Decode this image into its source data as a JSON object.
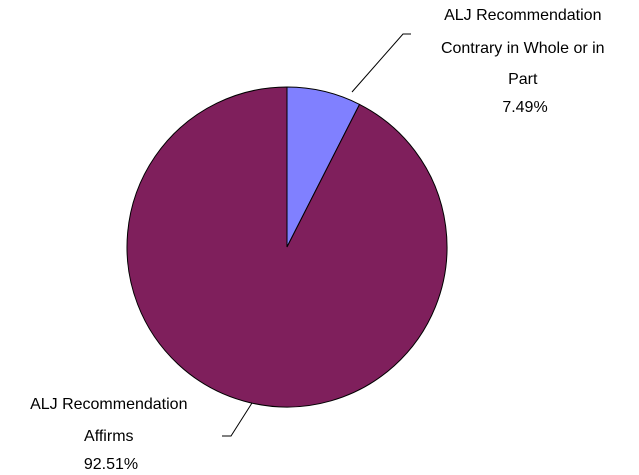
{
  "chart_data": {
    "type": "pie",
    "title": "",
    "start_angle_deg": 0,
    "direction": "clockwise",
    "slices": [
      {
        "label_lines": [
          "ALJ Recommendation",
          "Contrary in Whole or in",
          "Part"
        ],
        "percent_text": "7.49%",
        "value": 7.49,
        "color": "#8080FF"
      },
      {
        "label_lines": [
          "ALJ Recommendation",
          "Affirms"
        ],
        "percent_text": "92.51%",
        "value": 92.51,
        "color": "#7F1F5C"
      }
    ]
  }
}
